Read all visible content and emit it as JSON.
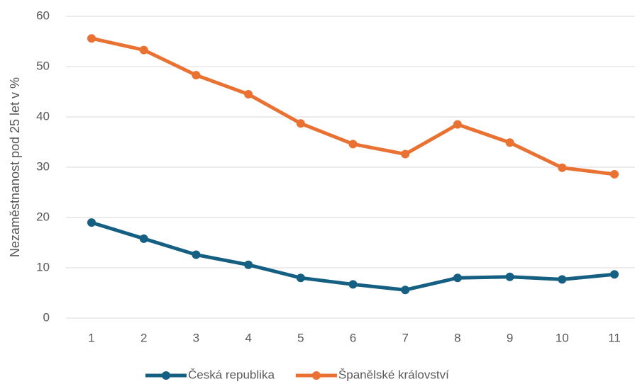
{
  "chart_data": {
    "type": "line",
    "y_label": "Nezaměstnanost pod 25 let v %",
    "categories": [
      "1",
      "2",
      "3",
      "4",
      "5",
      "6",
      "7",
      "8",
      "9",
      "10",
      "11"
    ],
    "series": [
      {
        "name": "Česká republika",
        "color": "#156082",
        "values": [
          19.0,
          15.8,
          12.6,
          10.6,
          8.0,
          6.7,
          5.6,
          8.0,
          8.2,
          7.7,
          8.7
        ]
      },
      {
        "name": "Španělské království",
        "color": "#e97132",
        "values": [
          55.6,
          53.3,
          48.3,
          44.5,
          38.7,
          34.6,
          32.6,
          38.5,
          34.9,
          29.9,
          28.6
        ]
      }
    ],
    "ylim": [
      0,
      60
    ],
    "yticks": [
      0,
      10,
      20,
      30,
      40,
      50,
      60
    ],
    "grid": true,
    "legend": "bottom"
  }
}
